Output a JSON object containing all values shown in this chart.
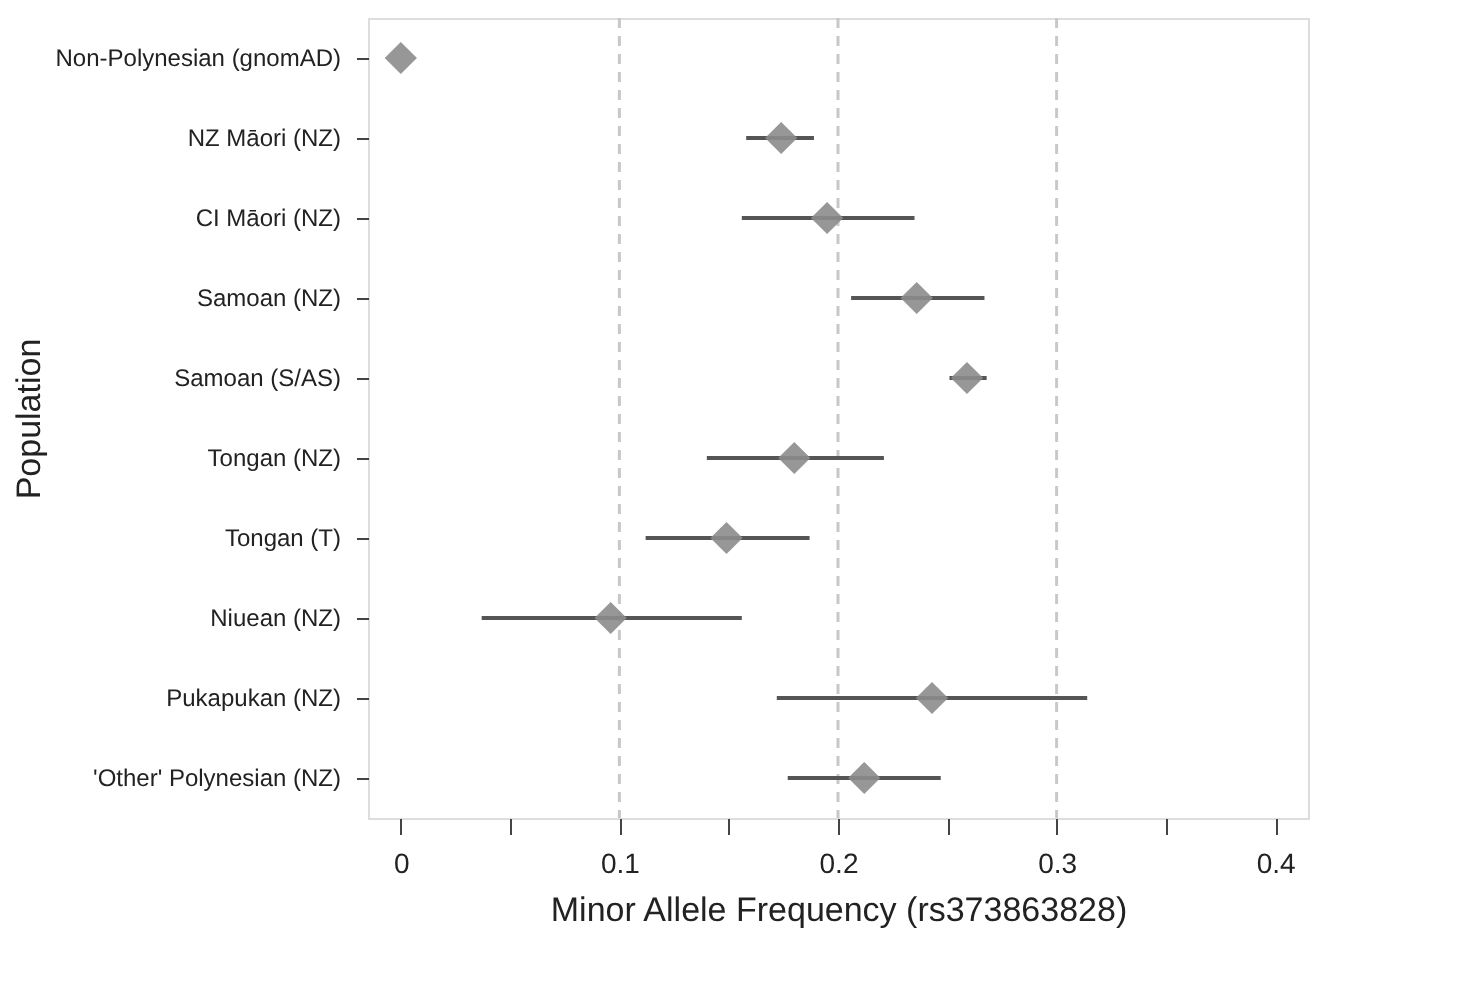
{
  "chart_data": {
    "type": "scatter",
    "xlabel": "Minor Allele Frequency (rs373863828)",
    "ylabel": "Population",
    "categories": [
      "Non-Polynesian (gnomAD)",
      "NZ Māori (NZ)",
      "CI  Māori (NZ)",
      "Samoan (NZ)",
      "Samoan (S/AS)",
      "Tongan (NZ)",
      "Tongan (T)",
      "Niuean (NZ)",
      "Pukapukan (NZ)",
      "'Other' Polynesian (NZ)"
    ],
    "values": [
      0.0,
      0.174,
      0.195,
      0.236,
      0.259,
      0.18,
      0.149,
      0.096,
      0.243,
      0.212
    ],
    "errors": [
      null,
      [
        0.158,
        0.189
      ],
      [
        0.156,
        0.235
      ],
      [
        0.206,
        0.267
      ],
      [
        0.251,
        0.268
      ],
      [
        0.14,
        0.221
      ],
      [
        0.112,
        0.187
      ],
      [
        0.037,
        0.156
      ],
      [
        0.172,
        0.314
      ],
      [
        0.177,
        0.247
      ]
    ],
    "color": "#8c8c8c",
    "marker": "diamond",
    "orientation": "horizontal",
    "xlim": [
      -0.015,
      0.415
    ],
    "xticks": [
      0,
      {
        "value": 0.05,
        "label": null
      },
      0.1,
      {
        "value": 0.15,
        "label": null
      },
      0.2,
      {
        "value": 0.25,
        "label": null
      },
      0.3,
      {
        "value": 0.35,
        "label": null
      },
      0.4
    ],
    "ref_lines": [
      {
        "axis": "x",
        "value": 0.1,
        "color": "#c8c8c8",
        "line_style": "dashed"
      },
      {
        "axis": "x",
        "value": 0.2,
        "color": "#c8c8c8",
        "line_style": "dashed"
      },
      {
        "axis": "x",
        "value": 0.3,
        "color": "#c8c8c8",
        "line_style": "dashed"
      }
    ]
  }
}
